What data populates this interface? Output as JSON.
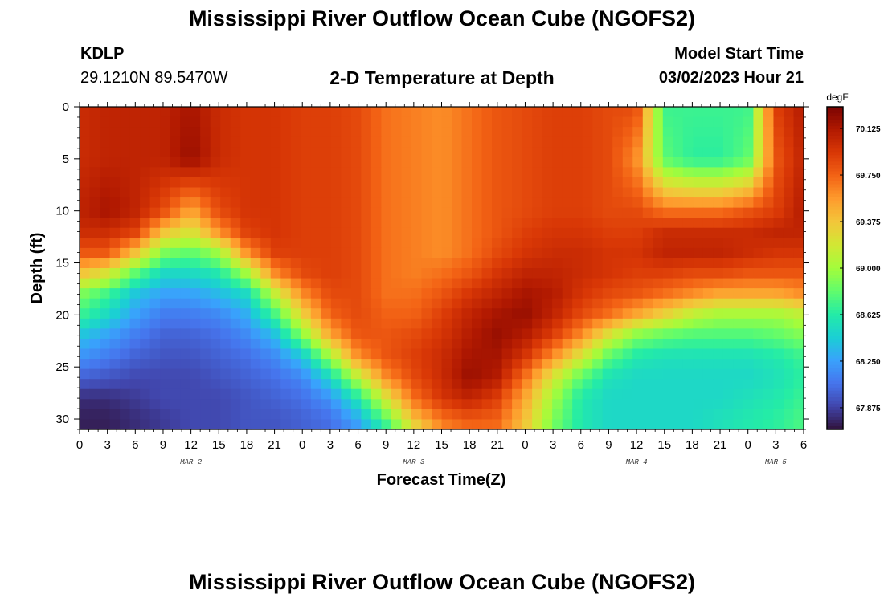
{
  "header": {
    "title_top": "Mississippi River Outflow Ocean Cube (NGOFS2)",
    "station_id": "KDLP",
    "station_coords": "29.1210N  89.5470W",
    "plot_title": "2-D Temperature at Depth",
    "model_start_label": "Model Start Time",
    "model_start_value": "03/02/2023 Hour 21",
    "title_bottom": "Mississippi River Outflow Ocean Cube (NGOFS2)"
  },
  "colors": {
    "scale": [
      "#30123b",
      "#4145ab",
      "#4675ed",
      "#39a2fc",
      "#1bcfd4",
      "#24eca6",
      "#61fc6c",
      "#a4fc3b",
      "#d1e834",
      "#f3c63a",
      "#fe9b2d",
      "#f36315",
      "#d93806",
      "#b11901",
      "#7a0402"
    ]
  },
  "chart_data": {
    "type": "heatmap",
    "title": "2-D Temperature at Depth",
    "xlabel": "Forecast Time(Z)",
    "ylabel": "Depth (ft)",
    "x_range_hours": [
      0,
      78
    ],
    "y_range": [
      0,
      31
    ],
    "x_tick_labels": [
      "0",
      "3",
      "6",
      "9",
      "12",
      "15",
      "18",
      "21",
      "0",
      "3",
      "6",
      "9",
      "12",
      "15",
      "18",
      "21",
      "0",
      "3",
      "6",
      "9",
      "12",
      "15",
      "18",
      "21",
      "0",
      "3",
      "6"
    ],
    "y_ticks": [
      0,
      5,
      10,
      15,
      20,
      25,
      30
    ],
    "date_labels": [
      {
        "label": "MAR 2",
        "hour": 12
      },
      {
        "label": "MAR 3",
        "hour": 36
      },
      {
        "label": "MAR 4",
        "hour": 60
      },
      {
        "label": "MAR 5",
        "hour": 75
      }
    ],
    "colorbar": {
      "unit": "degF",
      "min": 67.7,
      "max": 70.3,
      "tick_values": [
        70.125,
        69.75,
        69.375,
        69.0,
        68.625,
        68.25,
        67.875
      ],
      "tick_labels": [
        "70.125",
        "69.750",
        "69.375",
        "69.000",
        "68.625",
        "68.250",
        "67.875"
      ]
    },
    "grid_depths": [
      0,
      5,
      10,
      12,
      14,
      16,
      18,
      20,
      22,
      24,
      26,
      28,
      30,
      31
    ],
    "grid_hours": [
      0,
      3,
      6,
      9,
      12,
      15,
      18,
      21,
      24,
      27,
      30,
      33,
      36,
      39,
      42,
      45,
      48,
      51,
      54,
      57,
      60,
      63,
      66,
      69,
      72,
      75,
      78
    ],
    "temperature_grid": [
      [
        70.0,
        70.05,
        70.05,
        70.05,
        70.15,
        70.0,
        69.95,
        69.95,
        69.9,
        69.9,
        69.85,
        69.7,
        69.65,
        69.6,
        69.7,
        69.8,
        69.85,
        69.9,
        69.9,
        69.85,
        69.85,
        68.7,
        68.7,
        68.7,
        68.7,
        69.9,
        70.1
      ],
      [
        70.0,
        70.05,
        70.05,
        70.05,
        70.2,
        70.0,
        69.95,
        69.95,
        69.9,
        69.9,
        69.85,
        69.7,
        69.65,
        69.6,
        69.7,
        69.8,
        69.85,
        69.9,
        69.9,
        69.85,
        69.6,
        68.8,
        68.65,
        68.65,
        68.8,
        69.8,
        70.05
      ],
      [
        70.05,
        70.15,
        70.05,
        69.85,
        69.5,
        69.85,
        69.95,
        69.95,
        69.9,
        69.9,
        69.85,
        69.7,
        69.65,
        69.6,
        69.7,
        69.8,
        69.85,
        69.9,
        69.9,
        69.85,
        69.85,
        69.7,
        69.7,
        69.7,
        69.8,
        69.9,
        70.1
      ],
      [
        70.0,
        70.0,
        69.9,
        69.4,
        69.2,
        69.6,
        69.9,
        69.95,
        69.9,
        69.9,
        69.85,
        69.7,
        69.65,
        69.6,
        69.7,
        69.8,
        69.9,
        69.95,
        69.95,
        69.9,
        69.9,
        70.0,
        70.0,
        70.0,
        70.0,
        70.05,
        70.05
      ],
      [
        69.8,
        69.8,
        69.4,
        68.9,
        68.8,
        69.0,
        69.6,
        69.9,
        69.9,
        69.9,
        69.85,
        69.7,
        69.65,
        69.6,
        69.7,
        69.85,
        69.95,
        70.0,
        70.0,
        69.95,
        69.95,
        70.05,
        70.05,
        70.05,
        70.0,
        69.95,
        69.95
      ],
      [
        69.4,
        69.2,
        68.8,
        68.5,
        68.5,
        68.6,
        69.0,
        69.6,
        69.85,
        69.9,
        69.85,
        69.7,
        69.65,
        69.7,
        69.8,
        69.95,
        70.05,
        70.05,
        70.0,
        69.95,
        69.9,
        69.9,
        69.85,
        69.85,
        69.8,
        69.8,
        69.8
      ],
      [
        68.9,
        68.7,
        68.4,
        68.25,
        68.25,
        68.35,
        68.5,
        69.1,
        69.6,
        69.85,
        69.85,
        69.7,
        69.7,
        69.8,
        69.95,
        70.05,
        70.15,
        70.1,
        69.95,
        69.85,
        69.8,
        69.7,
        69.6,
        69.5,
        69.5,
        69.5,
        69.6
      ],
      [
        68.7,
        68.5,
        68.25,
        68.1,
        68.1,
        68.15,
        68.3,
        68.7,
        69.3,
        69.75,
        69.85,
        69.75,
        69.75,
        69.9,
        70.05,
        70.15,
        70.2,
        70.05,
        69.85,
        69.7,
        69.5,
        69.3,
        69.1,
        69.0,
        69.0,
        69.0,
        69.1
      ],
      [
        68.4,
        68.25,
        68.1,
        68.0,
        68.0,
        68.05,
        68.15,
        68.35,
        68.9,
        69.5,
        69.8,
        69.8,
        69.85,
        69.95,
        70.1,
        70.2,
        70.1,
        69.9,
        69.6,
        69.2,
        68.9,
        68.8,
        68.75,
        68.75,
        68.75,
        68.8,
        68.9
      ],
      [
        68.2,
        68.1,
        68.0,
        67.95,
        67.95,
        68.0,
        68.05,
        68.15,
        68.4,
        69.0,
        69.6,
        69.8,
        69.9,
        70.0,
        70.15,
        70.15,
        69.95,
        69.6,
        69.2,
        68.8,
        68.6,
        68.55,
        68.55,
        68.55,
        68.55,
        68.6,
        68.7
      ],
      [
        68.0,
        67.95,
        67.9,
        67.9,
        67.9,
        67.95,
        68.0,
        68.05,
        68.15,
        68.5,
        69.1,
        69.6,
        69.85,
        70.0,
        70.2,
        70.1,
        69.7,
        69.2,
        68.8,
        68.55,
        68.5,
        68.5,
        68.5,
        68.5,
        68.5,
        68.55,
        68.65
      ],
      [
        67.8,
        67.8,
        67.85,
        67.9,
        67.9,
        67.9,
        67.95,
        68.0,
        68.05,
        68.2,
        68.6,
        69.2,
        69.7,
        69.95,
        70.05,
        69.9,
        69.5,
        69.0,
        68.6,
        68.5,
        68.5,
        68.5,
        68.5,
        68.5,
        68.55,
        68.6,
        68.7
      ],
      [
        67.75,
        67.75,
        67.8,
        67.85,
        67.9,
        67.9,
        67.95,
        67.95,
        68.0,
        68.05,
        68.3,
        68.8,
        69.4,
        69.7,
        69.8,
        69.75,
        69.4,
        68.9,
        68.6,
        68.5,
        68.5,
        68.5,
        68.5,
        68.55,
        68.6,
        68.65,
        68.75
      ],
      [
        67.75,
        67.75,
        67.8,
        67.85,
        67.9,
        67.9,
        67.95,
        67.95,
        68.0,
        68.05,
        68.2,
        68.6,
        69.2,
        69.6,
        69.7,
        69.7,
        69.35,
        68.85,
        68.6,
        68.5,
        68.5,
        68.5,
        68.5,
        68.55,
        68.6,
        68.65,
        68.75
      ]
    ]
  }
}
